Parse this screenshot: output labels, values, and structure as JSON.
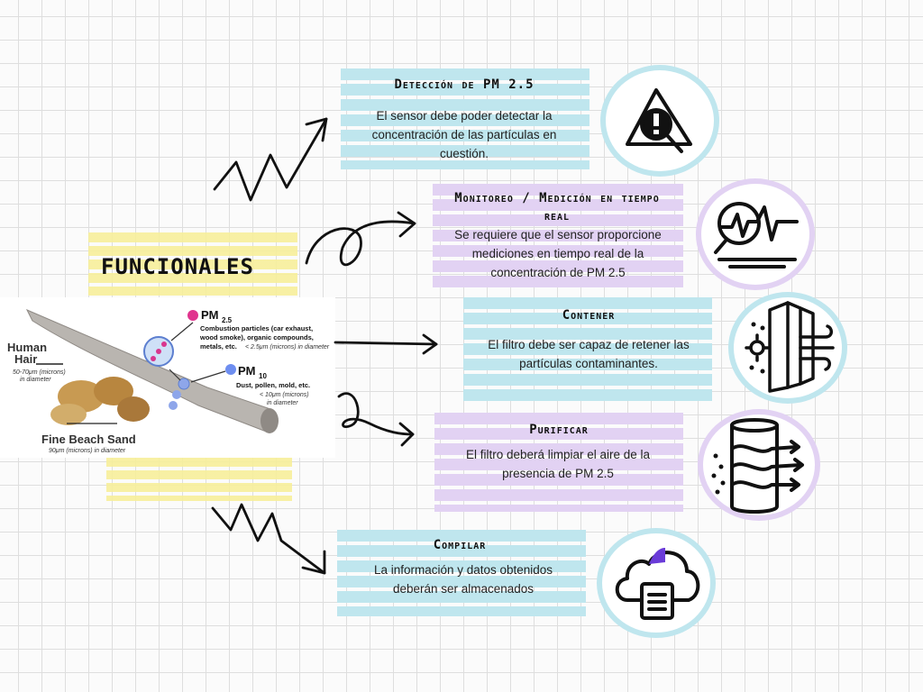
{
  "main_title": "FUNCIONALES",
  "image_labels": {
    "pm25": "PM",
    "pm25_sub": "2.5",
    "pm25_desc1": "Combustion particles (car exhaust,",
    "pm25_desc2": "wood smoke), organic compounds,",
    "pm25_desc3": "metals, etc.",
    "pm25_size": "< 2.5μm (microns) in diameter",
    "pm10": "PM",
    "pm10_sub": "10",
    "pm10_desc": "Dust, pollen, mold, etc.",
    "pm10_size1": "< 10μm (microns)",
    "pm10_size2": "in diameter",
    "hair": "Human",
    "hair2": "Hair",
    "hair_size1": "50-70μm (microns)",
    "hair_size2": "in diameter",
    "sand": "Fine Beach Sand",
    "sand_size": "90μm (microns) in diameter"
  },
  "items": [
    {
      "title": "Detección de PM 2.5",
      "desc": "El sensor debe poder detectar la concentración de las partículas en cuestión.",
      "icon": "warning-search-icon",
      "color": "#bfe6ee"
    },
    {
      "title": "Monitoreo / Medición en tiempo real",
      "desc": "Se requiere que el sensor proporcione mediciones en tiempo real de la concentración de PM 2.5",
      "icon": "monitor-pulse-icon",
      "color": "#e2d2f3"
    },
    {
      "title": "Contener",
      "desc": "El filtro debe ser capaz de retener las partículas contaminantes.",
      "icon": "air-filter-icon",
      "color": "#bfe6ee"
    },
    {
      "title": "Purificar",
      "desc": "El filtro deberá limpiar el aire de la presencia de PM 2.5",
      "icon": "air-purifier-icon",
      "color": "#e2d2f3"
    },
    {
      "title": "Compilar",
      "desc": "La información y datos obtenidos deberán ser almacenados",
      "icon": "cloud-storage-icon",
      "color": "#bfe6ee"
    }
  ]
}
